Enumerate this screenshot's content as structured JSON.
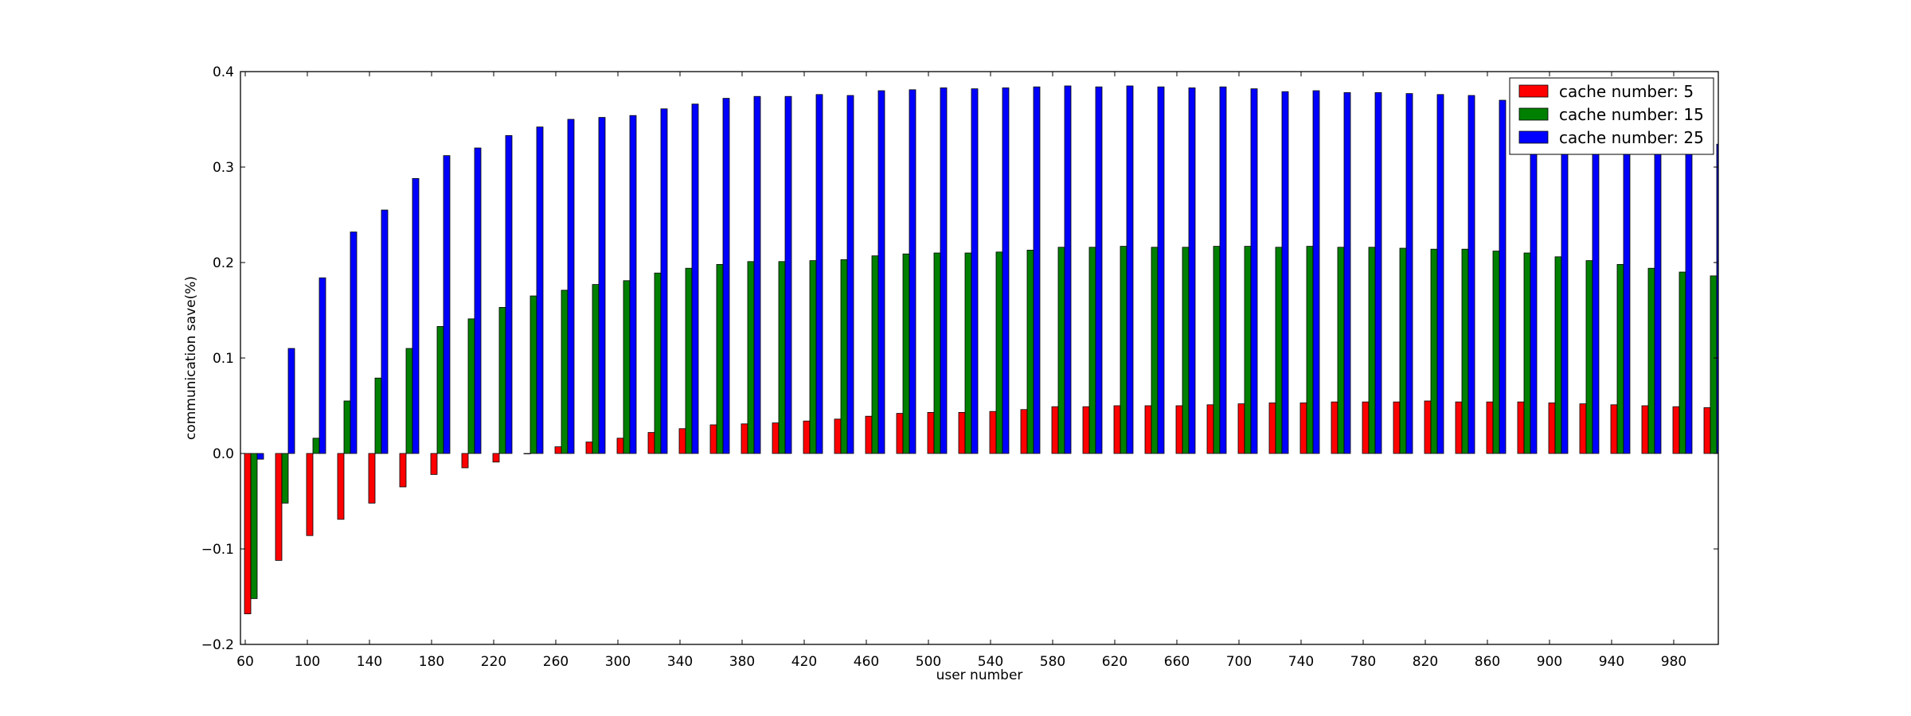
{
  "chart_data": {
    "type": "bar",
    "xlabel": "user number",
    "ylabel": "communication save(%)",
    "ylim": [
      -0.2,
      0.4
    ],
    "yticks": [
      "−0.2",
      "−0.1",
      "0.0",
      "0.1",
      "0.2",
      "0.3",
      "0.4"
    ],
    "ytick_values": [
      -0.2,
      -0.1,
      0.0,
      0.1,
      0.2,
      0.3,
      0.4
    ],
    "xtick_labels": [
      "60",
      "100",
      "140",
      "180",
      "220",
      "260",
      "300",
      "340",
      "380",
      "420",
      "460",
      "500",
      "540",
      "580",
      "620",
      "660",
      "700",
      "740",
      "780",
      "820",
      "860",
      "900",
      "940",
      "980"
    ],
    "categories": [
      60,
      80,
      100,
      120,
      140,
      160,
      180,
      200,
      220,
      240,
      260,
      280,
      300,
      320,
      340,
      360,
      380,
      400,
      420,
      440,
      460,
      480,
      500,
      520,
      540,
      560,
      580,
      600,
      620,
      640,
      660,
      680,
      700,
      720,
      740,
      760,
      780,
      800,
      820,
      840,
      860,
      880,
      900,
      920,
      940,
      960,
      980,
      1000
    ],
    "legend_position": "top-right",
    "grid": false,
    "series": [
      {
        "name": "cache number: 5",
        "color": "#ff0000",
        "values": [
          -0.168,
          -0.112,
          -0.086,
          -0.069,
          -0.052,
          -0.035,
          -0.022,
          -0.015,
          -0.009,
          0.0,
          0.007,
          0.012,
          0.016,
          0.022,
          0.026,
          0.03,
          0.031,
          0.032,
          0.034,
          0.036,
          0.039,
          0.042,
          0.043,
          0.043,
          0.044,
          0.046,
          0.049,
          0.049,
          0.05,
          0.05,
          0.05,
          0.051,
          0.052,
          0.053,
          0.053,
          0.054,
          0.054,
          0.054,
          0.055,
          0.054,
          0.054,
          0.054,
          0.053,
          0.052,
          0.051,
          0.05,
          0.049,
          0.048
        ]
      },
      {
        "name": "cache number: 15",
        "color": "#008000",
        "values": [
          -0.152,
          -0.052,
          0.016,
          0.055,
          0.079,
          0.11,
          0.133,
          0.141,
          0.153,
          0.165,
          0.171,
          0.177,
          0.181,
          0.189,
          0.194,
          0.198,
          0.201,
          0.201,
          0.202,
          0.203,
          0.207,
          0.209,
          0.21,
          0.21,
          0.211,
          0.213,
          0.216,
          0.216,
          0.217,
          0.216,
          0.216,
          0.217,
          0.217,
          0.216,
          0.217,
          0.216,
          0.216,
          0.215,
          0.214,
          0.214,
          0.212,
          0.21,
          0.206,
          0.202,
          0.198,
          0.194,
          0.19,
          0.186
        ]
      },
      {
        "name": "cache number: 25",
        "color": "#0000ff",
        "values": [
          -0.006,
          0.11,
          0.184,
          0.232,
          0.255,
          0.288,
          0.312,
          0.32,
          0.333,
          0.342,
          0.35,
          0.352,
          0.354,
          0.361,
          0.366,
          0.372,
          0.374,
          0.374,
          0.376,
          0.375,
          0.38,
          0.381,
          0.383,
          0.382,
          0.383,
          0.384,
          0.385,
          0.384,
          0.385,
          0.384,
          0.383,
          0.384,
          0.382,
          0.379,
          0.38,
          0.378,
          0.378,
          0.377,
          0.376,
          0.375,
          0.37,
          0.362,
          0.354,
          0.348,
          0.341,
          0.336,
          0.33,
          0.324
        ]
      }
    ]
  }
}
